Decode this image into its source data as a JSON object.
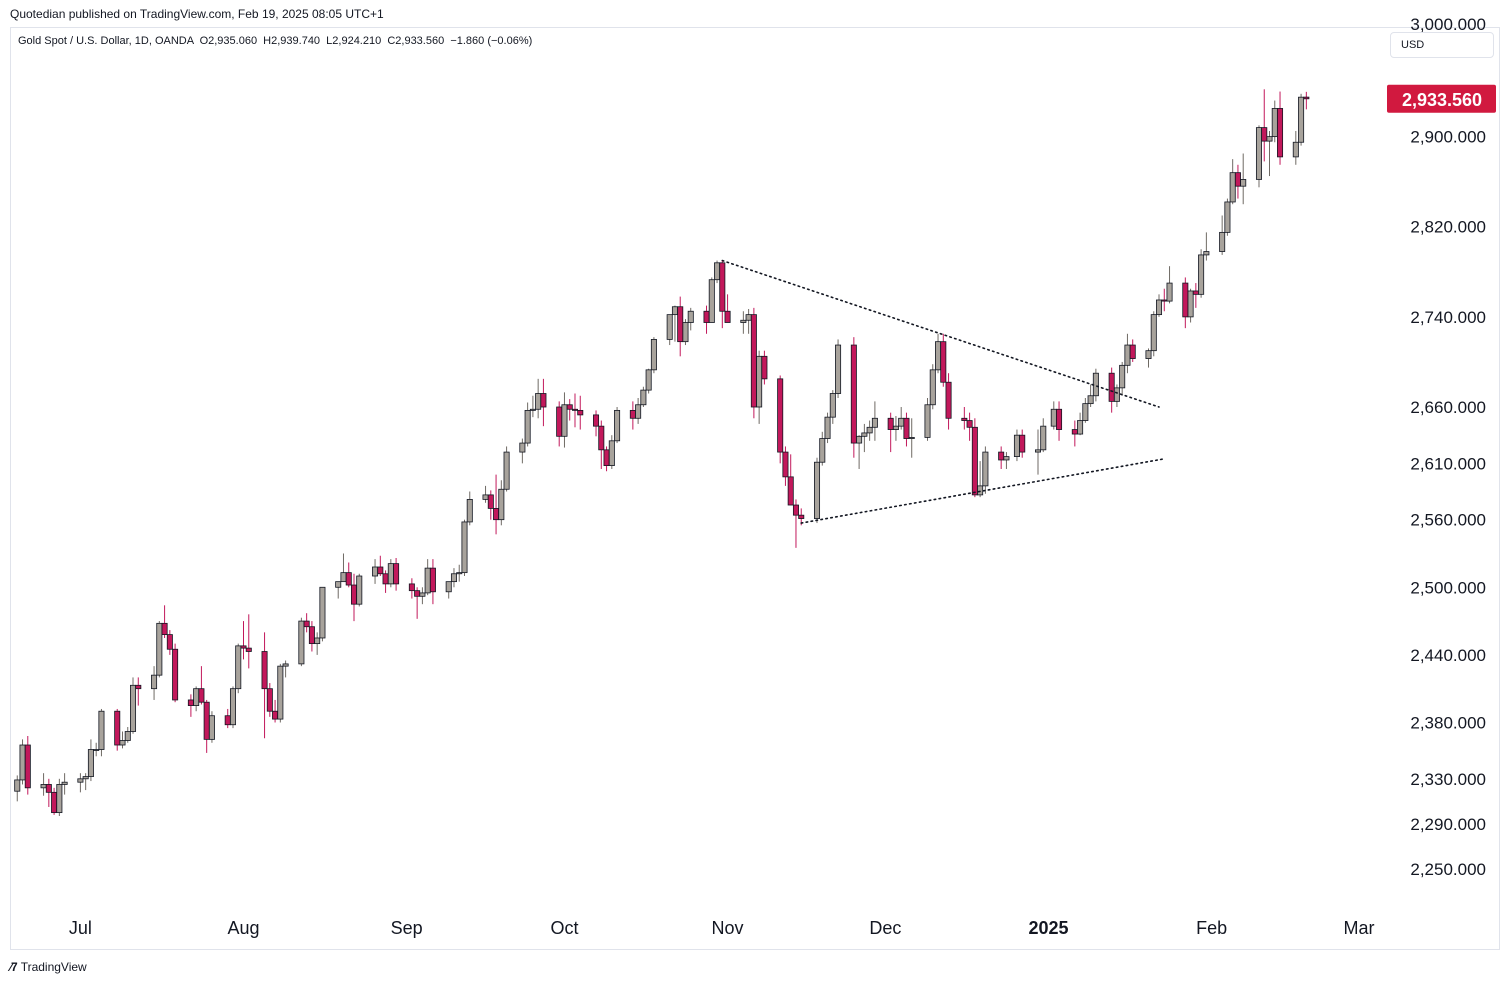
{
  "header": {
    "publisher": "Quotedian published on TradingView.com, Feb 19, 2025 08:05 UTC+1",
    "legend": "Gold Spot / U.S. Dollar, 1D, OANDA  O2,935.060  H2,939.740  L2,924.210  C2,933.560  −1.860 (−0.06%)",
    "currency": "USD"
  },
  "footer": {
    "brand": "TradingView",
    "logo_icon": "tradingview-logo-icon"
  },
  "colors": {
    "up_body": "#a8a39c",
    "down_body": "#c2185b",
    "outline": "#131722",
    "price_badge": "#d1193f"
  },
  "chart_data": {
    "type": "candlestick",
    "title": "Gold Spot / U.S. Dollar, 1D, OANDA",
    "ylim": [
      2218,
      2968
    ],
    "y_ticks": [
      "2,250.000",
      "2,290.000",
      "2,330.000",
      "2,380.000",
      "2,440.000",
      "2,500.000",
      "2,560.000",
      "2,610.000",
      "2,660.000",
      "2,740.000",
      "2,820.000",
      "2,900.000",
      "3,000.000"
    ],
    "y_tick_values": [
      2250,
      2290,
      2330,
      2380,
      2440,
      2500,
      2560,
      2610,
      2660,
      2740,
      2820,
      2900,
      3000
    ],
    "x_ticks": [
      {
        "label": "Jul",
        "date": "2024-07-01"
      },
      {
        "label": "Aug",
        "date": "2024-08-01"
      },
      {
        "label": "Sep",
        "date": "2024-09-01"
      },
      {
        "label": "Oct",
        "date": "2024-10-01"
      },
      {
        "label": "Nov",
        "date": "2024-11-01"
      },
      {
        "label": "Dec",
        "date": "2024-12-01"
      },
      {
        "label": "2025",
        "date": "2025-01-01",
        "bold": true
      },
      {
        "label": "Feb",
        "date": "2025-02-01"
      },
      {
        "label": "Mar",
        "date": "2025-03-01"
      }
    ],
    "last_price": 2933.56,
    "last_price_label": "2,933.560",
    "ohlc": [
      [
        "2024-06-19",
        2319,
        2333,
        2310,
        2329
      ],
      [
        "2024-06-20",
        2329,
        2365,
        2325,
        2360
      ],
      [
        "2024-06-21",
        2360,
        2368,
        2316,
        2322
      ],
      [
        "2024-06-24",
        2322,
        2335,
        2315,
        2325
      ],
      [
        "2024-06-25",
        2325,
        2330,
        2305,
        2318
      ],
      [
        "2024-06-26",
        2318,
        2322,
        2298,
        2300
      ],
      [
        "2024-06-27",
        2300,
        2330,
        2297,
        2325
      ],
      [
        "2024-06-28",
        2325,
        2335,
        2316,
        2327
      ],
      [
        "2024-07-01",
        2327,
        2335,
        2318,
        2330
      ],
      [
        "2024-07-02",
        2330,
        2335,
        2320,
        2332
      ],
      [
        "2024-07-03",
        2332,
        2365,
        2328,
        2356
      ],
      [
        "2024-07-04",
        2356,
        2362,
        2350,
        2356
      ],
      [
        "2024-07-05",
        2356,
        2392,
        2350,
        2390
      ],
      [
        "2024-07-08",
        2390,
        2392,
        2355,
        2360
      ],
      [
        "2024-07-09",
        2360,
        2372,
        2357,
        2364
      ],
      [
        "2024-07-10",
        2364,
        2376,
        2362,
        2372
      ],
      [
        "2024-07-11",
        2372,
        2420,
        2370,
        2413
      ],
      [
        "2024-07-12",
        2413,
        2420,
        2395,
        2410
      ],
      [
        "2024-07-15",
        2410,
        2430,
        2400,
        2422
      ],
      [
        "2024-07-16",
        2422,
        2470,
        2420,
        2468
      ],
      [
        "2024-07-17",
        2468,
        2484,
        2455,
        2458
      ],
      [
        "2024-07-18",
        2458,
        2462,
        2440,
        2445
      ],
      [
        "2024-07-19",
        2445,
        2450,
        2398,
        2400
      ],
      [
        "2024-07-22",
        2400,
        2405,
        2385,
        2395
      ],
      [
        "2024-07-23",
        2395,
        2412,
        2390,
        2410
      ],
      [
        "2024-07-24",
        2410,
        2430,
        2396,
        2398
      ],
      [
        "2024-07-25",
        2398,
        2400,
        2353,
        2365
      ],
      [
        "2024-07-26",
        2365,
        2390,
        2362,
        2386
      ],
      [
        "2024-07-29",
        2386,
        2392,
        2375,
        2378
      ],
      [
        "2024-07-30",
        2378,
        2412,
        2375,
        2410
      ],
      [
        "2024-07-31",
        2410,
        2450,
        2406,
        2448
      ],
      [
        "2024-08-01",
        2448,
        2470,
        2436,
        2446
      ],
      [
        "2024-08-02",
        2446,
        2476,
        2428,
        2443
      ],
      [
        "2024-08-05",
        2443,
        2460,
        2366,
        2410
      ],
      [
        "2024-08-06",
        2410,
        2415,
        2385,
        2390
      ],
      [
        "2024-08-07",
        2390,
        2400,
        2380,
        2383
      ],
      [
        "2024-08-08",
        2383,
        2432,
        2380,
        2430
      ],
      [
        "2024-08-09",
        2430,
        2435,
        2420,
        2432
      ],
      [
        "2024-08-12",
        2432,
        2473,
        2430,
        2470
      ],
      [
        "2024-08-13",
        2470,
        2477,
        2460,
        2465
      ],
      [
        "2024-08-14",
        2465,
        2470,
        2443,
        2450
      ],
      [
        "2024-08-15",
        2450,
        2460,
        2440,
        2455
      ],
      [
        "2024-08-16",
        2455,
        2500,
        2452,
        2500
      ],
      [
        "2024-08-19",
        2500,
        2505,
        2490,
        2505
      ],
      [
        "2024-08-20",
        2505,
        2530,
        2505,
        2513
      ],
      [
        "2024-08-21",
        2513,
        2522,
        2500,
        2502
      ],
      [
        "2024-08-22",
        2502,
        2512,
        2470,
        2485
      ],
      [
        "2024-08-23",
        2485,
        2512,
        2483,
        2510
      ],
      [
        "2024-08-26",
        2510,
        2525,
        2503,
        2518
      ],
      [
        "2024-08-27",
        2518,
        2528,
        2510,
        2512
      ],
      [
        "2024-08-28",
        2512,
        2515,
        2495,
        2503
      ],
      [
        "2024-08-29",
        2503,
        2525,
        2500,
        2521
      ],
      [
        "2024-08-30",
        2521,
        2526,
        2497,
        2503
      ],
      [
        "2024-09-02",
        2503,
        2508,
        2490,
        2497
      ],
      [
        "2024-09-03",
        2497,
        2500,
        2472,
        2492
      ],
      [
        "2024-09-04",
        2492,
        2500,
        2485,
        2495
      ],
      [
        "2024-09-05",
        2495,
        2525,
        2493,
        2517
      ],
      [
        "2024-09-06",
        2517,
        2525,
        2485,
        2496
      ],
      [
        "2024-09-09",
        2496,
        2505,
        2490,
        2505
      ],
      [
        "2024-09-10",
        2505,
        2517,
        2500,
        2512
      ],
      [
        "2024-09-11",
        2512,
        2520,
        2505,
        2513
      ],
      [
        "2024-09-12",
        2513,
        2560,
        2510,
        2558
      ],
      [
        "2024-09-13",
        2558,
        2585,
        2555,
        2578
      ],
      [
        "2024-09-16",
        2578,
        2590,
        2575,
        2582
      ],
      [
        "2024-09-17",
        2582,
        2586,
        2560,
        2570
      ],
      [
        "2024-09-18",
        2570,
        2600,
        2547,
        2560
      ],
      [
        "2024-09-19",
        2560,
        2595,
        2555,
        2587
      ],
      [
        "2024-09-20",
        2587,
        2625,
        2585,
        2620
      ],
      [
        "2024-09-23",
        2620,
        2632,
        2610,
        2628
      ],
      [
        "2024-09-24",
        2628,
        2664,
        2625,
        2657
      ],
      [
        "2024-09-25",
        2657,
        2670,
        2651,
        2658
      ],
      [
        "2024-09-26",
        2658,
        2685,
        2650,
        2672
      ],
      [
        "2024-09-27",
        2672,
        2685,
        2643,
        2660
      ],
      [
        "2024-09-30",
        2660,
        2665,
        2625,
        2634
      ],
      [
        "2024-10-01",
        2634,
        2673,
        2624,
        2662
      ],
      [
        "2024-10-02",
        2662,
        2667,
        2648,
        2658
      ],
      [
        "2024-10-03",
        2658,
        2672,
        2642,
        2657
      ],
      [
        "2024-10-04",
        2657,
        2670,
        2640,
        2653
      ],
      [
        "2024-10-07",
        2653,
        2657,
        2634,
        2643
      ],
      [
        "2024-10-08",
        2643,
        2648,
        2605,
        2622
      ],
      [
        "2024-10-09",
        2622,
        2625,
        2603,
        2608
      ],
      [
        "2024-10-10",
        2608,
        2635,
        2605,
        2630
      ],
      [
        "2024-10-11",
        2630,
        2660,
        2628,
        2657
      ],
      [
        "2024-10-14",
        2657,
        2665,
        2640,
        2650
      ],
      [
        "2024-10-15",
        2650,
        2668,
        2645,
        2662
      ],
      [
        "2024-10-16",
        2662,
        2678,
        2660,
        2675
      ],
      [
        "2024-10-17",
        2675,
        2694,
        2672,
        2693
      ],
      [
        "2024-10-18",
        2693,
        2722,
        2690,
        2720
      ],
      [
        "2024-10-21",
        2720,
        2740,
        2715,
        2742
      ],
      [
        "2024-10-22",
        2742,
        2750,
        2718,
        2749
      ],
      [
        "2024-10-23",
        2749,
        2758,
        2705,
        2718
      ],
      [
        "2024-10-24",
        2718,
        2738,
        2715,
        2735
      ],
      [
        "2024-10-25",
        2735,
        2748,
        2728,
        2745
      ],
      [
        "2024-10-28",
        2745,
        2750,
        2725,
        2735
      ],
      [
        "2024-10-29",
        2735,
        2775,
        2735,
        2773
      ],
      [
        "2024-10-30",
        2773,
        2790,
        2770,
        2788
      ],
      [
        "2024-10-31",
        2788,
        2790,
        2730,
        2745
      ],
      [
        "2024-11-01",
        2745,
        2760,
        2735,
        2735
      ],
      [
        "2024-11-04",
        2735,
        2745,
        2725,
        2737
      ],
      [
        "2024-11-05",
        2737,
        2747,
        2725,
        2742
      ],
      [
        "2024-11-06",
        2742,
        2748,
        2650,
        2660
      ],
      [
        "2024-11-07",
        2660,
        2710,
        2645,
        2705
      ],
      [
        "2024-11-08",
        2705,
        2710,
        2680,
        2685
      ],
      [
        "2024-11-11",
        2685,
        2688,
        2610,
        2620
      ],
      [
        "2024-11-12",
        2620,
        2625,
        2590,
        2598
      ],
      [
        "2024-11-13",
        2598,
        2618,
        2575,
        2573
      ],
      [
        "2024-11-14",
        2573,
        2578,
        2535,
        2564
      ],
      [
        "2024-11-15",
        2564,
        2570,
        2555,
        2561
      ],
      [
        "2024-11-18",
        2561,
        2615,
        2557,
        2611
      ],
      [
        "2024-11-19",
        2611,
        2638,
        2608,
        2632
      ],
      [
        "2024-11-20",
        2632,
        2655,
        2628,
        2651
      ],
      [
        "2024-11-21",
        2651,
        2675,
        2645,
        2672
      ],
      [
        "2024-11-22",
        2672,
        2720,
        2668,
        2715
      ],
      [
        "2024-11-25",
        2715,
        2722,
        2615,
        2628
      ],
      [
        "2024-11-26",
        2628,
        2635,
        2605,
        2634
      ],
      [
        "2024-11-27",
        2634,
        2645,
        2620,
        2637
      ],
      [
        "2024-11-28",
        2637,
        2648,
        2630,
        2642
      ],
      [
        "2024-11-29",
        2642,
        2665,
        2630,
        2650
      ],
      [
        "2024-12-02",
        2650,
        2655,
        2620,
        2640
      ],
      [
        "2024-12-03",
        2640,
        2652,
        2630,
        2643
      ],
      [
        "2024-12-04",
        2643,
        2660,
        2640,
        2650
      ],
      [
        "2024-12-05",
        2650,
        2655,
        2625,
        2632
      ],
      [
        "2024-12-06",
        2632,
        2650,
        2615,
        2633
      ],
      [
        "2024-12-09",
        2633,
        2668,
        2630,
        2662
      ],
      [
        "2024-12-10",
        2662,
        2698,
        2658,
        2693
      ],
      [
        "2024-12-11",
        2693,
        2725,
        2690,
        2718
      ],
      [
        "2024-12-12",
        2718,
        2725,
        2678,
        2682
      ],
      [
        "2024-12-13",
        2682,
        2690,
        2640,
        2650
      ],
      [
        "2024-12-16",
        2650,
        2660,
        2640,
        2648
      ],
      [
        "2024-12-17",
        2648,
        2655,
        2630,
        2642
      ],
      [
        "2024-12-18",
        2642,
        2650,
        2580,
        2582
      ],
      [
        "2024-12-19",
        2582,
        2612,
        2580,
        2590
      ],
      [
        "2024-12-20",
        2590,
        2625,
        2583,
        2620
      ],
      [
        "2024-12-23",
        2620,
        2625,
        2605,
        2613
      ],
      [
        "2024-12-24",
        2613,
        2620,
        2605,
        2616
      ],
      [
        "2024-12-26",
        2616,
        2640,
        2612,
        2635
      ],
      [
        "2024-12-27",
        2635,
        2640,
        2615,
        2620
      ],
      [
        "2024-12-30",
        2620,
        2640,
        2600,
        2622
      ],
      [
        "2024-12-31",
        2622,
        2650,
        2620,
        2643
      ],
      [
        "2025-01-02",
        2643,
        2665,
        2640,
        2658
      ],
      [
        "2025-01-03",
        2658,
        2665,
        2630,
        2640
      ],
      [
        "2025-01-06",
        2640,
        2648,
        2625,
        2636
      ],
      [
        "2025-01-07",
        2636,
        2655,
        2635,
        2648
      ],
      [
        "2025-01-08",
        2648,
        2668,
        2646,
        2663
      ],
      [
        "2025-01-09",
        2663,
        2680,
        2660,
        2670
      ],
      [
        "2025-01-10",
        2670,
        2694,
        2665,
        2690
      ],
      [
        "2025-01-13",
        2690,
        2695,
        2655,
        2665
      ],
      [
        "2025-01-14",
        2665,
        2680,
        2660,
        2677
      ],
      [
        "2025-01-15",
        2677,
        2700,
        2670,
        2697
      ],
      [
        "2025-01-16",
        2697,
        2725,
        2690,
        2715
      ],
      [
        "2025-01-17",
        2715,
        2720,
        2700,
        2703
      ],
      [
        "2025-01-20",
        2703,
        2712,
        2695,
        2710
      ],
      [
        "2025-01-21",
        2710,
        2745,
        2705,
        2742
      ],
      [
        "2025-01-22",
        2742,
        2760,
        2740,
        2755
      ],
      [
        "2025-01-23",
        2755,
        2765,
        2745,
        2754
      ],
      [
        "2025-01-24",
        2754,
        2785,
        2752,
        2770
      ],
      [
        "2025-01-27",
        2770,
        2775,
        2730,
        2740
      ],
      [
        "2025-01-28",
        2740,
        2765,
        2735,
        2763
      ],
      [
        "2025-01-29",
        2763,
        2770,
        2748,
        2760
      ],
      [
        "2025-01-30",
        2760,
        2800,
        2757,
        2795
      ],
      [
        "2025-01-31",
        2795,
        2815,
        2790,
        2798
      ],
      [
        "2025-02-03",
        2798,
        2830,
        2795,
        2815
      ],
      [
        "2025-02-04",
        2815,
        2845,
        2812,
        2842
      ],
      [
        "2025-02-05",
        2842,
        2880,
        2840,
        2868
      ],
      [
        "2025-02-06",
        2868,
        2875,
        2845,
        2856
      ],
      [
        "2025-02-07",
        2856,
        2885,
        2840,
        2862
      ],
      [
        "2025-02-10",
        2862,
        2910,
        2855,
        2908
      ],
      [
        "2025-02-11",
        2908,
        2942,
        2878,
        2896
      ],
      [
        "2025-02-12",
        2896,
        2905,
        2865,
        2900
      ],
      [
        "2025-02-13",
        2900,
        2932,
        2895,
        2925
      ],
      [
        "2025-02-14",
        2925,
        2940,
        2875,
        2882
      ],
      [
        "2025-02-17",
        2882,
        2905,
        2875,
        2895
      ],
      [
        "2025-02-18",
        2895,
        2938,
        2892,
        2935
      ],
      [
        "2025-02-19",
        2935.06,
        2939.74,
        2924.21,
        2933.56
      ]
    ],
    "trendlines": [
      {
        "style": "dotted",
        "from": {
          "date": "2024-10-31",
          "price": 2790
        },
        "to": {
          "date": "2025-01-22",
          "price": 2660
        }
      },
      {
        "style": "dotted",
        "from": {
          "date": "2024-11-15",
          "price": 2557
        },
        "to": {
          "date": "2025-01-23",
          "price": 2614
        }
      }
    ]
  }
}
